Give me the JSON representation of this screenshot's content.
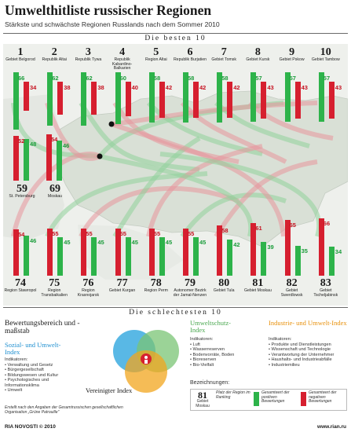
{
  "header": {
    "title": "Umwelthitliste russischer Regionen",
    "subtitle": "Stärkste und schwächste Regionen Russlands nach dem Sommer 2010"
  },
  "best_band": "Die besten 10",
  "worst_band": "Die schlechtesten 10",
  "colors": {
    "green": "#2db34a",
    "red": "#d61f2f",
    "map_land": "#dfe4dc",
    "arc_green": "#8fd19a",
    "arc_red": "#e8969c",
    "social": "#21a0dc",
    "ecology": "#7ac474",
    "industry": "#f2a51e"
  },
  "best": [
    {
      "rank": "1",
      "region": "Gebiet Belgorod",
      "green": 66,
      "red": 34
    },
    {
      "rank": "2",
      "region": "Republik Altai",
      "green": 62,
      "red": 38
    },
    {
      "rank": "3",
      "region": "Republik Tywa",
      "green": 62,
      "red": 38
    },
    {
      "rank": "4",
      "region": "Republik Kabardino-Balkarien",
      "green": 60,
      "red": 40
    },
    {
      "rank": "5",
      "region": "Region Altai",
      "green": 58,
      "red": 42
    },
    {
      "rank": "6",
      "region": "Republik Burjatien",
      "green": 58,
      "red": 42
    },
    {
      "rank": "7",
      "region": "Gebiet Tomsk",
      "green": 58,
      "red": 42
    },
    {
      "rank": "8",
      "region": "Gebiet Kursk",
      "green": 57,
      "red": 43
    },
    {
      "rank": "9",
      "region": "Gebiet Pskow",
      "green": 57,
      "red": 43
    },
    {
      "rank": "10",
      "region": "Gebiet Tambow",
      "green": 57,
      "red": 43
    }
  ],
  "cities": [
    {
      "rank": "59",
      "region": "St. Petersburg",
      "green": 48,
      "red": 52
    },
    {
      "rank": "69",
      "region": "Moskau",
      "green": 46,
      "red": 54
    }
  ],
  "worst": [
    {
      "rank": "74",
      "region": "Region Stawropol",
      "green": 46,
      "red": 54
    },
    {
      "rank": "75",
      "region": "Region Transbaikalien",
      "green": 45,
      "red": 55
    },
    {
      "rank": "76",
      "region": "Region Krasnojarsk",
      "green": 45,
      "red": 55
    },
    {
      "rank": "77",
      "region": "Gebiet Kurgan",
      "green": 45,
      "red": 55
    },
    {
      "rank": "78",
      "region": "Region Perm",
      "green": 45,
      "red": 55
    },
    {
      "rank": "79",
      "region": "Autonomer Bezirk der Jamal-Nenzen",
      "green": 45,
      "red": 55
    },
    {
      "rank": "80",
      "region": "Gebiet Tula",
      "green": 42,
      "red": 58
    },
    {
      "rank": "81",
      "region": "Gebiet Moskau",
      "green": 39,
      "red": 61
    },
    {
      "rank": "82",
      "region": "Gebiet Swerdlowsk",
      "green": 35,
      "red": 65
    },
    {
      "rank": "83",
      "region": "Gebiet Tscheljabinsk",
      "green": 34,
      "red": 66
    }
  ],
  "method": {
    "heading": "Bewertungsbereich und -maßstab",
    "social_title": "Sozial- und Umwelt-Index",
    "social_sub": "Indikatoren:",
    "social_items": [
      "• Verwaltung und Gesetz",
      "• Bürgergesellschaft",
      "• Bildungswesen und Kultur",
      "• Psychologisches und Informationsklima",
      "• Umwelt"
    ],
    "eco_title": "Umweltschutz-Index",
    "eco_sub": "Indikatoren:",
    "eco_items": [
      "• Luft",
      "• Wasserreserven",
      "• Bodenvorräte, Boden",
      "• Bioreserven",
      "• Bio-Vielfalt"
    ],
    "ind_title": "Industrie- und Umwelt-Index",
    "ind_sub": "Indikatoren:",
    "ind_items": [
      "• Produkte und Dienstleistungen",
      "• Wissenschaft und Technologie",
      "• Verantwortung der Unternehmer",
      "• Haushalts- und Industrieabfälle",
      "• Industriemilieu"
    ],
    "united": "Vereinigter Index",
    "source": "Erstellt nach den Angaben der Gesamtrussischen gesellschaftlichen Organisation „Grüne Patrouille\""
  },
  "legend": {
    "heading": "Bezeichnungen:",
    "rank": "81",
    "region": "Gebiet Moskau",
    "rank_desc": "Platz der Region im Ranking",
    "green_desc": "Gesamtwert der positiven Bewertungen",
    "red_desc": "Gesamtwert der negativen Bewertungen"
  },
  "footer": {
    "left": "RIA NOVOSTI © 2010",
    "right": "www.rian.ru"
  }
}
